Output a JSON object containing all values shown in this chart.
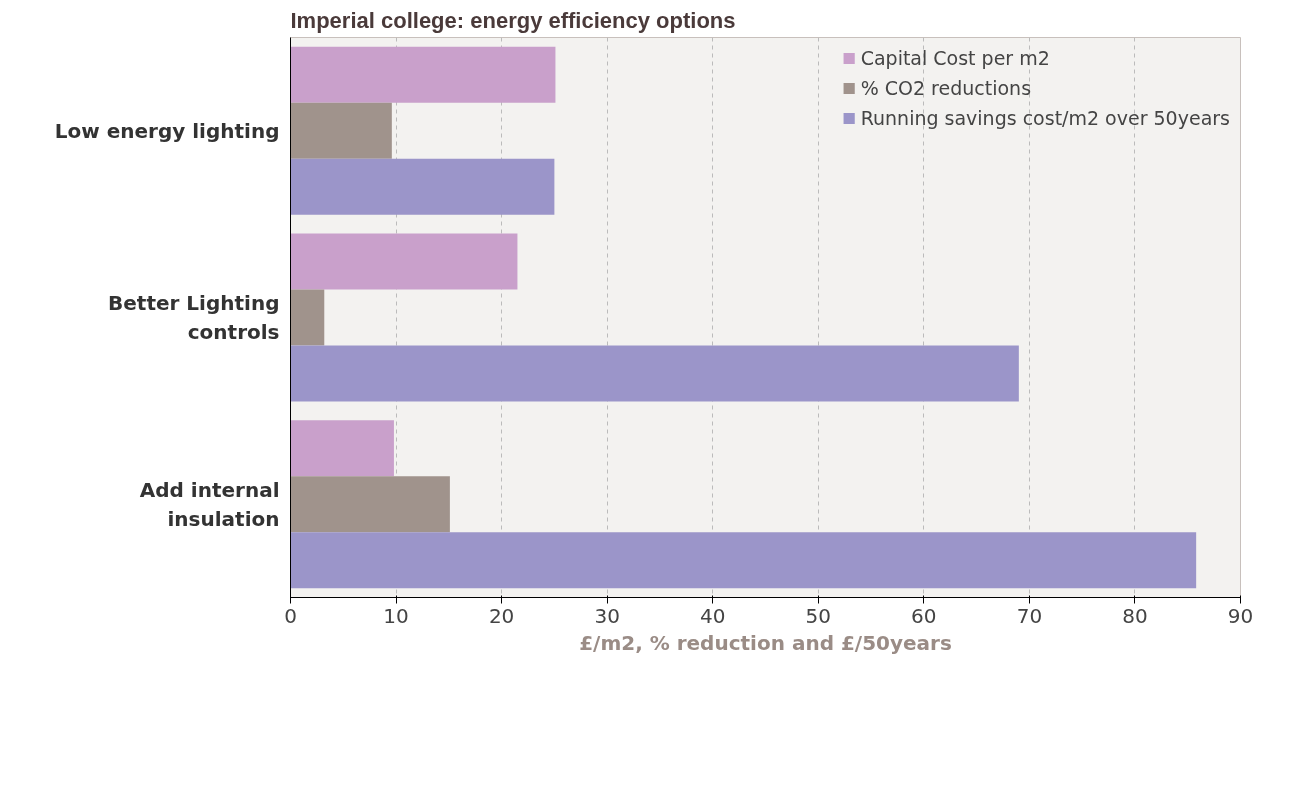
{
  "chart_data": {
    "type": "bar",
    "orientation": "horizontal",
    "title": "Imperial college: energy efficiency options",
    "xlabel": "£/m2, % reduction and £/50years",
    "categories": [
      "Low energy lighting",
      "Better Lighting controls",
      "Add internal insulation"
    ],
    "series": [
      {
        "name": "Capital Cost per m2",
        "color": "#c9a0cb",
        "values": [
          25.1,
          21.5,
          9.8
        ]
      },
      {
        "name": "% CO2 reductions",
        "color": "#a0938c",
        "values": [
          9.6,
          3.2,
          15.1
        ]
      },
      {
        "name": "Running savings cost/m2 over 50years",
        "color": "#9b95c9",
        "values": [
          25.0,
          69.0,
          85.8
        ]
      }
    ],
    "xlim": [
      0,
      90
    ],
    "xticks": [
      0,
      10,
      20,
      30,
      40,
      50,
      60,
      70,
      80,
      90
    ],
    "grid": "x",
    "legend": "top right"
  }
}
